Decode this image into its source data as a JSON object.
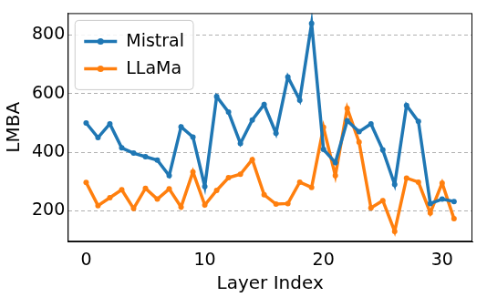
{
  "chart_data": {
    "type": "line",
    "x_label": "Layer Index",
    "y_label": "LMBA",
    "x": [
      0,
      1,
      2,
      3,
      4,
      5,
      6,
      7,
      8,
      9,
      10,
      11,
      12,
      13,
      14,
      15,
      16,
      17,
      18,
      19,
      20,
      21,
      22,
      23,
      24,
      25,
      26,
      27,
      28,
      29,
      30,
      31
    ],
    "series": [
      {
        "name": "Mistral",
        "color": "#1f77b4",
        "marker": "o",
        "line_style": "solid",
        "values": [
          500,
          450,
          497,
          415,
          397,
          385,
          373,
          320,
          487,
          452,
          283,
          590,
          537,
          430,
          510,
          563,
          465,
          657,
          578,
          840,
          410,
          365,
          508,
          470,
          497,
          408,
          290,
          560,
          505,
          225,
          240,
          232
        ]
      },
      {
        "name": "LLaMa",
        "color": "#ff7f0e",
        "marker": "o",
        "line_style": "solid",
        "values": [
          297,
          218,
          245,
          272,
          208,
          277,
          240,
          275,
          213,
          333,
          220,
          270,
          313,
          325,
          375,
          255,
          223,
          225,
          298,
          280,
          485,
          320,
          550,
          435,
          210,
          235,
          130,
          312,
          298,
          193,
          295,
          173
        ]
      }
    ],
    "xlim": [
      -1.55,
      32.55
    ],
    "xticks": [
      0,
      10,
      20,
      30
    ],
    "ylim": [
      95,
      875
    ],
    "yticks": [
      200,
      400,
      600,
      800
    ],
    "grid": true,
    "legend": "upper left"
  }
}
